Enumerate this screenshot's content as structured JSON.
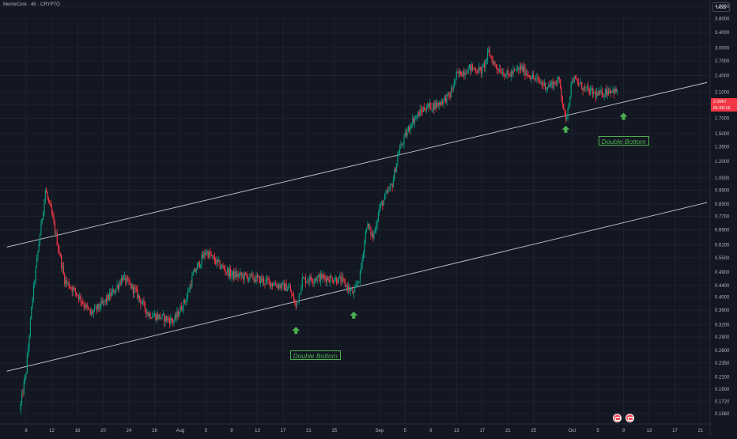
{
  "header": {
    "symbol": "MemeCore · 4h · CRYPTO",
    "currency": "USD"
  },
  "price_tag": {
    "price": "2.0967",
    "countdown": "01:56:16"
  },
  "icons": [
    "event-calendar-icon",
    "event-calendar-icon"
  ],
  "colors": {
    "background": "#131722",
    "up": "#089981",
    "down": "#f23645",
    "annotation": "#4caf50",
    "channel_line": "#d1d4dc",
    "text": "#b2b5be"
  },
  "chart_data": {
    "type": "candlestick",
    "y_scale": "log",
    "timeframe": "4h",
    "y_ticks": [
      "4.2000",
      "3.8000",
      "3.4000",
      "3.0000",
      "2.7000",
      "2.4000",
      "2.1000",
      "1.9000",
      "1.7000",
      "1.5000",
      "1.3500",
      "1.2000",
      "1.0500",
      "0.9500",
      "0.8500",
      "0.7700",
      "0.6900",
      "0.6100",
      "0.5500",
      "0.4900",
      "0.4400",
      "0.4000",
      "0.3600",
      "0.3200",
      "0.2900",
      "0.2600",
      "0.2350",
      "0.2100",
      "0.1900",
      "0.1720",
      "0.1560"
    ],
    "x_ticks": [
      {
        "label": "8",
        "date": "2025-07-08"
      },
      {
        "label": "12",
        "date": "2025-07-12"
      },
      {
        "label": "16",
        "date": "2025-07-16"
      },
      {
        "label": "20",
        "date": "2025-07-20"
      },
      {
        "label": "24",
        "date": "2025-07-24"
      },
      {
        "label": "28",
        "date": "2025-07-28"
      },
      {
        "label": "Aug",
        "date": "2025-08-01"
      },
      {
        "label": "5",
        "date": "2025-08-05"
      },
      {
        "label": "9",
        "date": "2025-08-09"
      },
      {
        "label": "13",
        "date": "2025-08-13"
      },
      {
        "label": "17",
        "date": "2025-08-17"
      },
      {
        "label": "21",
        "date": "2025-08-21"
      },
      {
        "label": "25",
        "date": "2025-08-25"
      },
      {
        "label": "Sep",
        "date": "2025-09-01"
      },
      {
        "label": "5",
        "date": "2025-09-05"
      },
      {
        "label": "9",
        "date": "2025-09-09"
      },
      {
        "label": "13",
        "date": "2025-09-13"
      },
      {
        "label": "17",
        "date": "2025-09-17"
      },
      {
        "label": "21",
        "date": "2025-09-21"
      },
      {
        "label": "25",
        "date": "2025-09-25"
      },
      {
        "label": "Oct",
        "date": "2025-10-01"
      },
      {
        "label": "5",
        "date": "2025-10-05"
      },
      {
        "label": "9",
        "date": "2025-10-09"
      },
      {
        "label": "13",
        "date": "2025-10-13"
      },
      {
        "label": "17",
        "date": "2025-10-17"
      },
      {
        "label": "21",
        "date": "2025-10-21"
      }
    ],
    "closes": [
      {
        "date": "2025-07-07",
        "close": 0.16
      },
      {
        "date": "2025-07-08",
        "close": 0.22
      },
      {
        "date": "2025-07-09",
        "close": 0.4
      },
      {
        "date": "2025-07-10",
        "close": 0.62
      },
      {
        "date": "2025-07-11",
        "close": 0.95
      },
      {
        "date": "2025-07-12",
        "close": 0.78
      },
      {
        "date": "2025-07-13",
        "close": 0.6
      },
      {
        "date": "2025-07-14",
        "close": 0.46
      },
      {
        "date": "2025-07-16",
        "close": 0.41
      },
      {
        "date": "2025-07-18",
        "close": 0.35
      },
      {
        "date": "2025-07-20",
        "close": 0.38
      },
      {
        "date": "2025-07-22",
        "close": 0.43
      },
      {
        "date": "2025-07-23",
        "close": 0.47
      },
      {
        "date": "2025-07-25",
        "close": 0.42
      },
      {
        "date": "2025-07-27",
        "close": 0.35
      },
      {
        "date": "2025-07-29",
        "close": 0.34
      },
      {
        "date": "2025-07-31",
        "close": 0.33
      },
      {
        "date": "2025-08-02",
        "close": 0.4
      },
      {
        "date": "2025-08-03",
        "close": 0.48
      },
      {
        "date": "2025-08-05",
        "close": 0.58
      },
      {
        "date": "2025-08-07",
        "close": 0.52
      },
      {
        "date": "2025-08-09",
        "close": 0.48
      },
      {
        "date": "2025-08-12",
        "close": 0.47
      },
      {
        "date": "2025-08-15",
        "close": 0.45
      },
      {
        "date": "2025-08-18",
        "close": 0.43
      },
      {
        "date": "2025-08-19",
        "close": 0.37
      },
      {
        "date": "2025-08-20",
        "close": 0.46
      },
      {
        "date": "2025-08-23",
        "close": 0.47
      },
      {
        "date": "2025-08-26",
        "close": 0.46
      },
      {
        "date": "2025-08-28",
        "close": 0.41
      },
      {
        "date": "2025-08-29",
        "close": 0.48
      },
      {
        "date": "2025-08-30",
        "close": 0.72
      },
      {
        "date": "2025-08-31",
        "close": 0.65
      },
      {
        "date": "2025-09-01",
        "close": 0.82
      },
      {
        "date": "2025-09-03",
        "close": 1.0
      },
      {
        "date": "2025-09-04",
        "close": 1.3
      },
      {
        "date": "2025-09-06",
        "close": 1.65
      },
      {
        "date": "2025-09-08",
        "close": 1.85
      },
      {
        "date": "2025-09-10",
        "close": 1.9
      },
      {
        "date": "2025-09-12",
        "close": 2.05
      },
      {
        "date": "2025-09-13",
        "close": 2.4
      },
      {
        "date": "2025-09-15",
        "close": 2.55
      },
      {
        "date": "2025-09-17",
        "close": 2.5
      },
      {
        "date": "2025-09-18",
        "close": 2.9
      },
      {
        "date": "2025-09-19",
        "close": 2.6
      },
      {
        "date": "2025-09-21",
        "close": 2.4
      },
      {
        "date": "2025-09-23",
        "close": 2.55
      },
      {
        "date": "2025-09-25",
        "close": 2.35
      },
      {
        "date": "2025-09-27",
        "close": 2.2
      },
      {
        "date": "2025-09-29",
        "close": 2.3
      },
      {
        "date": "2025-09-30",
        "close": 1.65
      },
      {
        "date": "2025-10-01",
        "close": 2.35
      },
      {
        "date": "2025-10-03",
        "close": 2.15
      },
      {
        "date": "2025-10-05",
        "close": 2.05
      },
      {
        "date": "2025-10-07",
        "close": 2.15
      },
      {
        "date": "2025-10-08",
        "close": 2.0967
      }
    ],
    "channel": {
      "upper": [
        {
          "date": "2025-07-05",
          "price": 0.6
        },
        {
          "date": "2025-10-22",
          "price": 2.27
        }
      ],
      "lower": [
        {
          "date": "2025-07-05",
          "price": 0.22
        },
        {
          "date": "2025-10-22",
          "price": 0.86
        }
      ]
    },
    "annotations": [
      {
        "text": "Double Bottom",
        "date": "2025-08-22",
        "price": 0.25
      },
      {
        "text": "Double Bottom",
        "date": "2025-10-09",
        "price": 1.42
      }
    ],
    "arrows": [
      {
        "date": "2025-08-19",
        "price": 0.305
      },
      {
        "date": "2025-08-28",
        "price": 0.345
      },
      {
        "date": "2025-09-30",
        "price": 1.55
      },
      {
        "date": "2025-10-09",
        "price": 1.72
      }
    ],
    "events": [
      {
        "date": "2025-10-08"
      },
      {
        "date": "2025-10-10"
      }
    ]
  }
}
